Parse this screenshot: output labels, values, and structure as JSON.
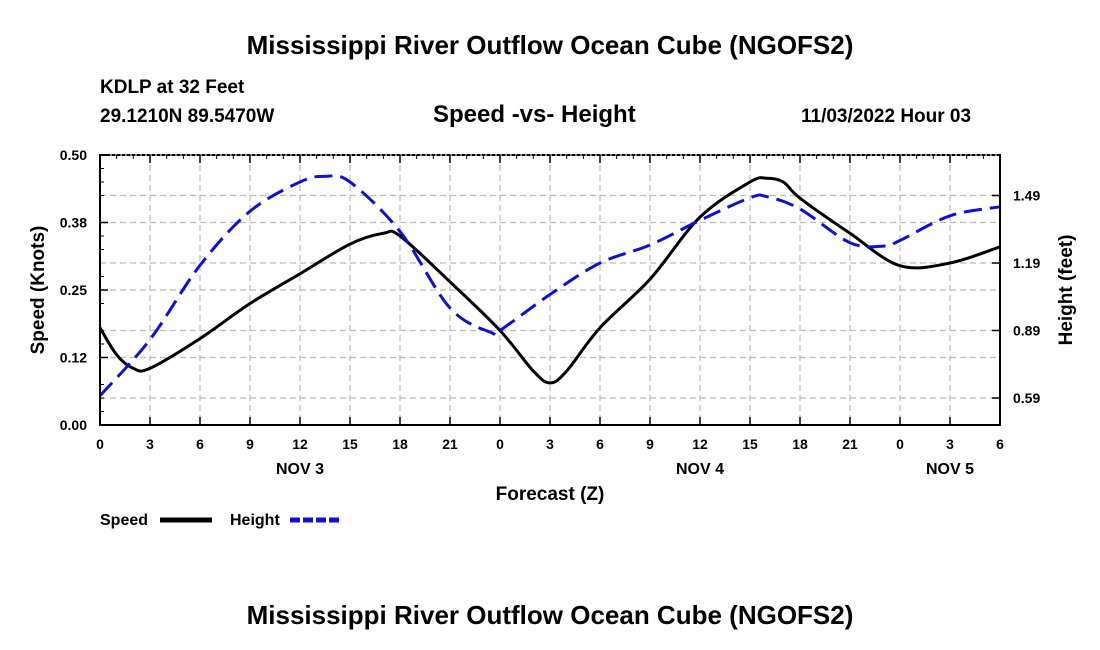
{
  "header": {
    "title": "Mississippi River Outflow Ocean Cube (NGOFS2)",
    "station": "KDLP at 32 Feet",
    "coords": "29.1210N  89.5470W",
    "subtitle": "Speed -vs- Height",
    "datetime": "11/03/2022 Hour 03"
  },
  "footer": {
    "title": "Mississippi River Outflow Ocean Cube (NGOFS2)"
  },
  "legend": {
    "speed_label": "Speed",
    "height_label": "Height"
  },
  "colors": {
    "speed": "#000000",
    "height": "#1010d0",
    "grid": "#bbbbbb"
  },
  "chart_data": {
    "type": "line",
    "title": "Speed -vs- Height",
    "xlabel": "Forecast (Z)",
    "ylabel": "Speed (Knots)",
    "y2label": "Height (feet)",
    "xlim": [
      0,
      54
    ],
    "ylim": [
      0,
      0.5
    ],
    "y2lim": [
      0.47,
      1.67
    ],
    "x_ticks": [
      0,
      3,
      6,
      9,
      12,
      15,
      18,
      21,
      24,
      27,
      30,
      33,
      36,
      39,
      42,
      45,
      48,
      51,
      54
    ],
    "x_tick_labels": [
      "0",
      "3",
      "6",
      "9",
      "12",
      "15",
      "18",
      "21",
      "0",
      "3",
      "6",
      "9",
      "12",
      "15",
      "18",
      "21",
      "0",
      "3",
      "6"
    ],
    "y_ticks": [
      0.0,
      0.125,
      0.25,
      0.375,
      0.5
    ],
    "y_tick_labels": [
      "0.00",
      "0.12",
      "0.25",
      "0.38",
      "0.50"
    ],
    "y2_ticks": [
      0.59,
      0.89,
      1.19,
      1.49
    ],
    "y2_tick_labels": [
      "0.59",
      "0.89",
      "1.19",
      "1.49"
    ],
    "day_labels": [
      {
        "x": 12,
        "label": "NOV 3"
      },
      {
        "x": 36,
        "label": "NOV 4"
      },
      {
        "x": 51,
        "label": "NOV 5"
      }
    ],
    "series": [
      {
        "name": "Speed",
        "axis": "left",
        "style": "solid",
        "x": [
          0,
          1,
          2,
          3,
          6,
          9,
          12,
          15,
          17,
          18,
          21,
          24,
          26,
          27,
          28,
          30,
          33,
          36,
          39,
          40,
          41,
          42,
          45,
          48,
          51,
          54
        ],
        "values": [
          0.18,
          0.13,
          0.105,
          0.105,
          0.16,
          0.225,
          0.28,
          0.335,
          0.355,
          0.35,
          0.265,
          0.175,
          0.1,
          0.078,
          0.1,
          0.18,
          0.27,
          0.385,
          0.45,
          0.457,
          0.45,
          0.42,
          0.355,
          0.295,
          0.3,
          0.33
        ]
      },
      {
        "name": "Height",
        "axis": "right",
        "style": "dashed",
        "x": [
          0,
          3,
          6,
          9,
          12,
          13.5,
          15,
          18,
          21,
          23.5,
          24,
          27,
          30,
          33,
          36,
          39,
          40,
          42,
          45,
          47,
          48,
          51,
          54
        ],
        "values": [
          0.6,
          0.85,
          1.18,
          1.42,
          1.55,
          1.575,
          1.55,
          1.33,
          0.99,
          0.88,
          0.89,
          1.05,
          1.19,
          1.27,
          1.38,
          1.48,
          1.485,
          1.43,
          1.28,
          1.265,
          1.29,
          1.4,
          1.44
        ]
      }
    ]
  }
}
